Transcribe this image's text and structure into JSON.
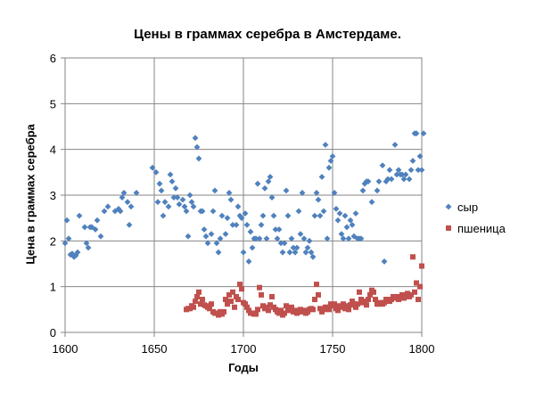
{
  "chart_data": {
    "type": "scatter",
    "title": "Цены в граммах серебра в Амстердаме.",
    "xlabel": "Годы",
    "ylabel": "Цена в граммах серебра",
    "xlim": [
      1600,
      1800
    ],
    "ylim": [
      0,
      6
    ],
    "x_ticks": [
      "1600",
      "1650",
      "1700",
      "1750",
      "1800"
    ],
    "y_ticks": [
      "0",
      "1",
      "2",
      "3",
      "4",
      "5",
      "6"
    ],
    "grid": true,
    "legend": "right",
    "series": [
      {
        "name": "сыр",
        "color": "#4f81bd",
        "marker": "diamond",
        "points": [
          [
            1600,
            1.95
          ],
          [
            1601,
            2.45
          ],
          [
            1602,
            2.05
          ],
          [
            1603,
            1.7
          ],
          [
            1604,
            1.72
          ],
          [
            1605,
            1.65
          ],
          [
            1606,
            1.68
          ],
          [
            1607,
            1.75
          ],
          [
            1608,
            2.55
          ],
          [
            1611,
            2.3
          ],
          [
            1612,
            1.95
          ],
          [
            1613,
            1.85
          ],
          [
            1614,
            2.3
          ],
          [
            1615,
            2.3
          ],
          [
            1617,
            2.25
          ],
          [
            1618,
            2.45
          ],
          [
            1620,
            2.1
          ],
          [
            1622,
            2.65
          ],
          [
            1624,
            2.75
          ],
          [
            1628,
            2.65
          ],
          [
            1630,
            2.7
          ],
          [
            1631,
            2.65
          ],
          [
            1632,
            2.95
          ],
          [
            1633,
            3.05
          ],
          [
            1635,
            2.85
          ],
          [
            1636,
            2.35
          ],
          [
            1637,
            2.75
          ],
          [
            1640,
            3.05
          ],
          [
            1649,
            3.6
          ],
          [
            1651,
            3.5
          ],
          [
            1652,
            2.85
          ],
          [
            1653,
            3.25
          ],
          [
            1654,
            3.1
          ],
          [
            1655,
            2.55
          ],
          [
            1656,
            2.85
          ],
          [
            1658,
            2.75
          ],
          [
            1659,
            3.45
          ],
          [
            1660,
            3.3
          ],
          [
            1661,
            2.95
          ],
          [
            1662,
            3.15
          ],
          [
            1663,
            2.95
          ],
          [
            1664,
            2.8
          ],
          [
            1666,
            2.9
          ],
          [
            1667,
            2.75
          ],
          [
            1668,
            2.65
          ],
          [
            1669,
            2.1
          ],
          [
            1670,
            3.0
          ],
          [
            1671,
            2.85
          ],
          [
            1672,
            2.75
          ],
          [
            1673,
            4.25
          ],
          [
            1674,
            4.05
          ],
          [
            1675,
            3.8
          ],
          [
            1676,
            2.65
          ],
          [
            1677,
            2.65
          ],
          [
            1678,
            2.25
          ],
          [
            1679,
            2.1
          ],
          [
            1680,
            1.95
          ],
          [
            1682,
            2.15
          ],
          [
            1683,
            2.65
          ],
          [
            1684,
            3.1
          ],
          [
            1685,
            1.95
          ],
          [
            1686,
            1.75
          ],
          [
            1687,
            2.05
          ],
          [
            1688,
            2.55
          ],
          [
            1690,
            2.15
          ],
          [
            1691,
            2.5
          ],
          [
            1692,
            3.05
          ],
          [
            1693,
            2.9
          ],
          [
            1694,
            2.35
          ],
          [
            1696,
            2.35
          ],
          [
            1697,
            2.75
          ],
          [
            1698,
            2.55
          ],
          [
            1699,
            2.5
          ],
          [
            1700,
            1.75
          ],
          [
            1701,
            2.6
          ],
          [
            1702,
            2.35
          ],
          [
            1703,
            1.55
          ],
          [
            1704,
            2.2
          ],
          [
            1705,
            1.85
          ],
          [
            1706,
            2.05
          ],
          [
            1707,
            2.05
          ],
          [
            1708,
            3.25
          ],
          [
            1709,
            2.05
          ],
          [
            1710,
            2.35
          ],
          [
            1711,
            2.55
          ],
          [
            1712,
            3.15
          ],
          [
            1713,
            2.05
          ],
          [
            1714,
            3.3
          ],
          [
            1715,
            3.4
          ],
          [
            1716,
            2.95
          ],
          [
            1717,
            2.55
          ],
          [
            1718,
            2.25
          ],
          [
            1719,
            2.05
          ],
          [
            1720,
            2.25
          ],
          [
            1721,
            1.95
          ],
          [
            1722,
            1.75
          ],
          [
            1723,
            1.95
          ],
          [
            1724,
            3.1
          ],
          [
            1725,
            2.55
          ],
          [
            1726,
            1.75
          ],
          [
            1727,
            2.05
          ],
          [
            1728,
            1.85
          ],
          [
            1729,
            1.75
          ],
          [
            1730,
            1.85
          ],
          [
            1731,
            2.65
          ],
          [
            1732,
            2.15
          ],
          [
            1733,
            3.05
          ],
          [
            1734,
            2.05
          ],
          [
            1735,
            1.75
          ],
          [
            1736,
            1.85
          ],
          [
            1737,
            2.0
          ],
          [
            1738,
            1.75
          ],
          [
            1739,
            1.65
          ],
          [
            1740,
            2.55
          ],
          [
            1741,
            3.05
          ],
          [
            1742,
            2.9
          ],
          [
            1743,
            2.55
          ],
          [
            1744,
            3.4
          ],
          [
            1745,
            2.65
          ],
          [
            1746,
            4.1
          ],
          [
            1747,
            2.05
          ],
          [
            1748,
            3.6
          ],
          [
            1749,
            3.75
          ],
          [
            1750,
            3.85
          ],
          [
            1751,
            3.05
          ],
          [
            1752,
            2.7
          ],
          [
            1753,
            2.45
          ],
          [
            1754,
            2.6
          ],
          [
            1755,
            2.15
          ],
          [
            1756,
            2.05
          ],
          [
            1757,
            2.55
          ],
          [
            1758,
            2.3
          ],
          [
            1759,
            2.05
          ],
          [
            1760,
            2.45
          ],
          [
            1761,
            2.35
          ],
          [
            1762,
            2.1
          ],
          [
            1763,
            2.6
          ],
          [
            1764,
            2.05
          ],
          [
            1765,
            2.05
          ],
          [
            1766,
            2.05
          ],
          [
            1767,
            3.1
          ],
          [
            1768,
            3.25
          ],
          [
            1769,
            3.3
          ],
          [
            1770,
            3.3
          ],
          [
            1772,
            2.85
          ],
          [
            1775,
            3.1
          ],
          [
            1776,
            3.3
          ],
          [
            1778,
            3.65
          ],
          [
            1779,
            1.55
          ],
          [
            1780,
            3.3
          ],
          [
            1781,
            3.35
          ],
          [
            1782,
            3.55
          ],
          [
            1783,
            3.35
          ],
          [
            1785,
            4.1
          ],
          [
            1786,
            3.45
          ],
          [
            1787,
            3.55
          ],
          [
            1788,
            3.45
          ],
          [
            1789,
            3.45
          ],
          [
            1790,
            3.35
          ],
          [
            1791,
            3.45
          ],
          [
            1793,
            3.35
          ],
          [
            1794,
            3.55
          ],
          [
            1795,
            3.75
          ],
          [
            1796,
            4.35
          ],
          [
            1797,
            4.35
          ],
          [
            1798,
            3.55
          ],
          [
            1799,
            3.85
          ],
          [
            1800,
            3.55
          ],
          [
            1801,
            4.35
          ]
        ]
      },
      {
        "name": "пшеница",
        "color": "#c0504d",
        "marker": "square",
        "points": [
          [
            1668,
            0.5
          ],
          [
            1669,
            0.52
          ],
          [
            1670,
            0.52
          ],
          [
            1671,
            0.58
          ],
          [
            1672,
            0.55
          ],
          [
            1673,
            0.68
          ],
          [
            1674,
            0.78
          ],
          [
            1675,
            0.88
          ],
          [
            1676,
            0.62
          ],
          [
            1677,
            0.72
          ],
          [
            1678,
            0.6
          ],
          [
            1679,
            0.58
          ],
          [
            1680,
            0.55
          ],
          [
            1681,
            0.52
          ],
          [
            1682,
            0.62
          ],
          [
            1683,
            0.45
          ],
          [
            1684,
            0.42
          ],
          [
            1685,
            0.42
          ],
          [
            1686,
            0.38
          ],
          [
            1687,
            0.45
          ],
          [
            1688,
            0.4
          ],
          [
            1689,
            0.45
          ],
          [
            1690,
            0.72
          ],
          [
            1691,
            0.62
          ],
          [
            1692,
            0.82
          ],
          [
            1693,
            0.68
          ],
          [
            1694,
            0.88
          ],
          [
            1695,
            0.55
          ],
          [
            1696,
            0.78
          ],
          [
            1697,
            0.72
          ],
          [
            1698,
            1.05
          ],
          [
            1699,
            0.95
          ],
          [
            1700,
            0.65
          ],
          [
            1701,
            0.62
          ],
          [
            1702,
            0.55
          ],
          [
            1703,
            0.48
          ],
          [
            1704,
            0.42
          ],
          [
            1705,
            0.42
          ],
          [
            1706,
            0.4
          ],
          [
            1707,
            0.4
          ],
          [
            1708,
            0.5
          ],
          [
            1709,
            0.98
          ],
          [
            1710,
            0.82
          ],
          [
            1711,
            0.58
          ],
          [
            1712,
            0.52
          ],
          [
            1713,
            0.55
          ],
          [
            1714,
            0.48
          ],
          [
            1715,
            0.6
          ],
          [
            1716,
            0.78
          ],
          [
            1717,
            0.55
          ],
          [
            1718,
            0.5
          ],
          [
            1719,
            0.45
          ],
          [
            1720,
            0.42
          ],
          [
            1721,
            0.48
          ],
          [
            1722,
            0.38
          ],
          [
            1723,
            0.42
          ],
          [
            1724,
            0.58
          ],
          [
            1725,
            0.48
          ],
          [
            1726,
            0.5
          ],
          [
            1727,
            0.55
          ],
          [
            1728,
            0.45
          ],
          [
            1729,
            0.48
          ],
          [
            1730,
            0.42
          ],
          [
            1731,
            0.45
          ],
          [
            1732,
            0.5
          ],
          [
            1733,
            0.45
          ],
          [
            1734,
            0.48
          ],
          [
            1735,
            0.42
          ],
          [
            1736,
            0.45
          ],
          [
            1737,
            0.5
          ],
          [
            1738,
            0.52
          ],
          [
            1739,
            0.5
          ],
          [
            1740,
            0.72
          ],
          [
            1741,
            1.05
          ],
          [
            1742,
            0.82
          ],
          [
            1743,
            0.52
          ],
          [
            1744,
            0.45
          ],
          [
            1745,
            0.5
          ],
          [
            1746,
            0.55
          ],
          [
            1747,
            0.55
          ],
          [
            1748,
            0.5
          ],
          [
            1749,
            0.62
          ],
          [
            1750,
            0.58
          ],
          [
            1751,
            0.62
          ],
          [
            1752,
            0.52
          ],
          [
            1753,
            0.48
          ],
          [
            1754,
            0.58
          ],
          [
            1755,
            0.55
          ],
          [
            1756,
            0.62
          ],
          [
            1757,
            0.52
          ],
          [
            1758,
            0.58
          ],
          [
            1759,
            0.5
          ],
          [
            1760,
            0.6
          ],
          [
            1761,
            0.68
          ],
          [
            1762,
            0.62
          ],
          [
            1763,
            0.55
          ],
          [
            1764,
            0.62
          ],
          [
            1765,
            0.88
          ],
          [
            1766,
            0.72
          ],
          [
            1767,
            0.65
          ],
          [
            1768,
            0.68
          ],
          [
            1769,
            0.6
          ],
          [
            1770,
            0.72
          ],
          [
            1771,
            0.82
          ],
          [
            1772,
            0.92
          ],
          [
            1773,
            0.88
          ],
          [
            1774,
            0.72
          ],
          [
            1775,
            0.62
          ],
          [
            1776,
            0.62
          ],
          [
            1777,
            0.65
          ],
          [
            1778,
            0.62
          ],
          [
            1779,
            0.65
          ],
          [
            1780,
            0.72
          ],
          [
            1781,
            0.72
          ],
          [
            1782,
            0.68
          ],
          [
            1783,
            0.72
          ],
          [
            1784,
            0.78
          ],
          [
            1785,
            0.75
          ],
          [
            1786,
            0.78
          ],
          [
            1787,
            0.72
          ],
          [
            1788,
            0.78
          ],
          [
            1789,
            0.82
          ],
          [
            1790,
            0.75
          ],
          [
            1791,
            0.8
          ],
          [
            1792,
            0.85
          ],
          [
            1793,
            0.78
          ],
          [
            1794,
            0.82
          ],
          [
            1795,
            1.65
          ],
          [
            1796,
            0.88
          ],
          [
            1797,
            1.08
          ],
          [
            1798,
            0.72
          ],
          [
            1799,
            1.0
          ],
          [
            1800,
            1.45
          ]
        ]
      }
    ]
  }
}
